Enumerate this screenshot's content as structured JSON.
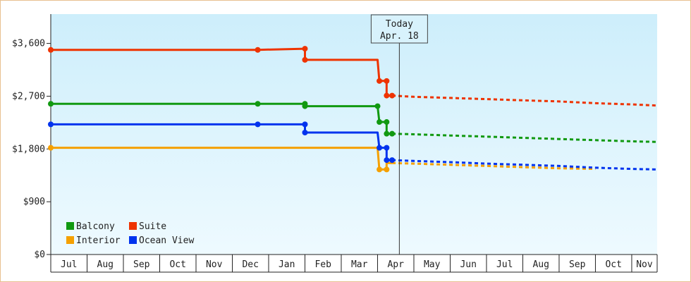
{
  "chart_data": {
    "type": "line",
    "style": "step",
    "y_axis": {
      "min": 0,
      "max": 4100,
      "ticks": [
        0,
        900,
        1800,
        2700,
        3600
      ],
      "tick_labels": [
        "$0",
        "$900",
        "$1,800",
        "$2,700",
        "$3,600"
      ]
    },
    "x_axis": {
      "labels": [
        "Jul",
        "Aug",
        "Sep",
        "Oct",
        "Nov",
        "Dec",
        "Jan",
        "Feb",
        "Mar",
        "Apr",
        "May",
        "Jun",
        "Jul",
        "Aug",
        "Sep",
        "Oct",
        "Nov"
      ],
      "month_index_range": [
        0,
        16.7
      ]
    },
    "today_marker": {
      "line1": "Today",
      "line2": "Apr. 18",
      "month_index": 9.6
    },
    "colors": {
      "Balcony": "#119911",
      "Suite": "#ee3300",
      "Interior": "#f5a000",
      "Ocean View": "#0033ee",
      "plot_top": "#cdeefb",
      "plot_bottom": "#eefaff"
    },
    "series": [
      {
        "name": "Suite",
        "points": [
          [
            0,
            3490
          ],
          [
            5.7,
            3490
          ],
          [
            7.0,
            3510
          ],
          [
            7.0,
            3320
          ],
          [
            9.0,
            3320
          ],
          [
            9.05,
            2960
          ],
          [
            9.25,
            2960
          ],
          [
            9.25,
            2710
          ],
          [
            9.4,
            2710
          ]
        ],
        "markers": [
          [
            0,
            3490
          ],
          [
            5.7,
            3490
          ],
          [
            7.0,
            3510
          ],
          [
            7.0,
            3320
          ],
          [
            9.05,
            2960
          ],
          [
            9.25,
            2960
          ],
          [
            9.25,
            2710
          ],
          [
            9.4,
            2710
          ]
        ],
        "forecast": [
          [
            9.4,
            2710
          ],
          [
            10,
            2690
          ],
          [
            11,
            2670
          ],
          [
            12,
            2650
          ],
          [
            13,
            2630
          ],
          [
            14,
            2610
          ],
          [
            15,
            2580
          ],
          [
            16,
            2560
          ],
          [
            16.7,
            2540
          ]
        ]
      },
      {
        "name": "Balcony",
        "points": [
          [
            0,
            2570
          ],
          [
            5.7,
            2570
          ],
          [
            7.0,
            2570
          ],
          [
            7.0,
            2530
          ],
          [
            9.0,
            2530
          ],
          [
            9.05,
            2260
          ],
          [
            9.25,
            2260
          ],
          [
            9.25,
            2060
          ],
          [
            9.4,
            2060
          ]
        ],
        "markers": [
          [
            0,
            2570
          ],
          [
            5.7,
            2570
          ],
          [
            7.0,
            2570
          ],
          [
            7.0,
            2530
          ],
          [
            9.0,
            2530
          ],
          [
            9.05,
            2260
          ],
          [
            9.25,
            2260
          ],
          [
            9.25,
            2060
          ],
          [
            9.4,
            2060
          ]
        ],
        "forecast": [
          [
            9.4,
            2060
          ],
          [
            10,
            2050
          ],
          [
            11,
            2030
          ],
          [
            12,
            2010
          ],
          [
            13,
            1990
          ],
          [
            14,
            1970
          ],
          [
            15,
            1950
          ],
          [
            16,
            1930
          ],
          [
            16.7,
            1920
          ]
        ]
      },
      {
        "name": "Ocean View",
        "points": [
          [
            0,
            2220
          ],
          [
            5.7,
            2220
          ],
          [
            7.0,
            2220
          ],
          [
            7.0,
            2080
          ],
          [
            9.0,
            2080
          ],
          [
            9.05,
            1820
          ],
          [
            9.25,
            1820
          ],
          [
            9.25,
            1610
          ],
          [
            9.4,
            1610
          ]
        ],
        "markers": [
          [
            0,
            2220
          ],
          [
            5.7,
            2220
          ],
          [
            7.0,
            2220
          ],
          [
            7.0,
            2080
          ],
          [
            9.05,
            1820
          ],
          [
            9.25,
            1820
          ],
          [
            9.25,
            1610
          ],
          [
            9.4,
            1610
          ]
        ],
        "forecast": [
          [
            9.4,
            1610
          ],
          [
            10,
            1595
          ],
          [
            11,
            1575
          ],
          [
            12,
            1550
          ],
          [
            13,
            1530
          ],
          [
            14,
            1510
          ],
          [
            15,
            1480
          ],
          [
            16,
            1460
          ],
          [
            16.7,
            1450
          ]
        ]
      },
      {
        "name": "Interior",
        "points": [
          [
            0,
            1820
          ],
          [
            9.0,
            1820
          ],
          [
            9.05,
            1450
          ],
          [
            9.25,
            1450
          ],
          [
            9.25,
            1560
          ],
          [
            9.4,
            1560
          ]
        ],
        "markers": [
          [
            0,
            1820
          ],
          [
            9.05,
            1450
          ],
          [
            9.25,
            1450
          ]
        ],
        "forecast": [
          [
            9.4,
            1560
          ],
          [
            10,
            1550
          ],
          [
            11,
            1530
          ],
          [
            12,
            1510
          ],
          [
            13,
            1490
          ],
          [
            14,
            1470
          ],
          [
            15,
            1460
          ]
        ]
      }
    ],
    "legend": {
      "position": "bottom-left",
      "rows": [
        [
          "Balcony",
          "Suite"
        ],
        [
          "Interior",
          "Ocean View"
        ]
      ]
    },
    "grid": false
  }
}
